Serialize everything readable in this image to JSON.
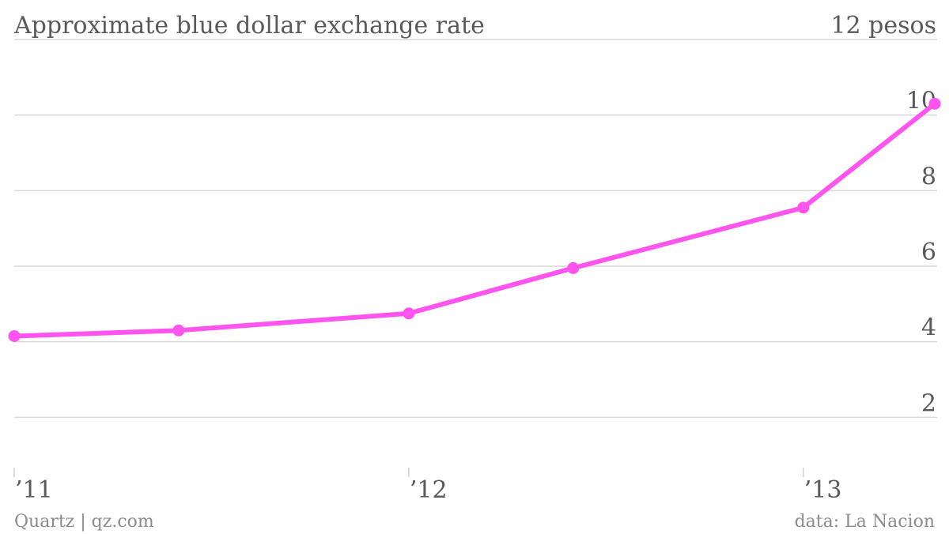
{
  "chart_data": {
    "type": "line",
    "title": "Approximate blue dollar exchange rate",
    "unit_label": "12 pesos",
    "xlabel": "",
    "ylabel": "",
    "x_tick_labels": [
      "’11",
      "’12",
      "’13"
    ],
    "y_tick_labels": [
      "2",
      "4",
      "6",
      "8",
      "10"
    ],
    "ylim": [
      0,
      12
    ],
    "grid": true,
    "series": [
      {
        "color": "#ff55ee",
        "points": [
          {
            "x": "2011-01",
            "y": 4.15
          },
          {
            "x": "2011-06",
            "y": 4.3
          },
          {
            "x": "2012-01",
            "y": 4.75
          },
          {
            "x": "2012-06",
            "y": 5.95
          },
          {
            "x": "2013-01",
            "y": 7.55
          },
          {
            "x": "2013-05",
            "y": 10.3
          }
        ]
      }
    ],
    "source": "data: La Nacion",
    "credit": "Quartz | qz.com"
  }
}
